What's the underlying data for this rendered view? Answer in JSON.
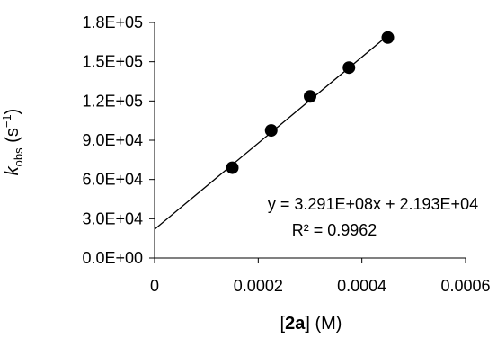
{
  "chart_data": {
    "type": "scatter",
    "xlabel": {
      "pre": "[",
      "bold": "2a",
      "post": "] (M)"
    },
    "ylabel": {
      "k": "k",
      "sub": "obs",
      "unit_pre": " (s",
      "sup": "−1",
      "unit_post": ")"
    },
    "x_ticks": [
      "0",
      "0.0002",
      "0.0004",
      "0.0006"
    ],
    "x_tick_values": [
      0,
      0.0002,
      0.0004,
      0.0006
    ],
    "y_ticks": [
      "0.0E+00",
      "3.0E+04",
      "6.0E+04",
      "9.0E+04",
      "1.2E+05",
      "1.5E+05",
      "1.8E+05"
    ],
    "y_tick_values": [
      0,
      30000,
      60000,
      90000,
      120000,
      150000,
      180000
    ],
    "xlim": [
      0,
      0.0006
    ],
    "ylim": [
      0,
      180000
    ],
    "grid": false,
    "legend": "none",
    "series": [
      {
        "x": [
          0.00015,
          0.000225,
          0.0003,
          0.000375,
          0.00045
        ],
        "y": [
          69000,
          97500,
          123500,
          145500,
          168500
        ]
      }
    ],
    "trendline": {
      "slope": 329100000,
      "intercept": 21930,
      "equation": "y = 3.291E+08x + 2.193E+04",
      "r2": "R² = 0.9962"
    },
    "marker_color": "#000000"
  }
}
